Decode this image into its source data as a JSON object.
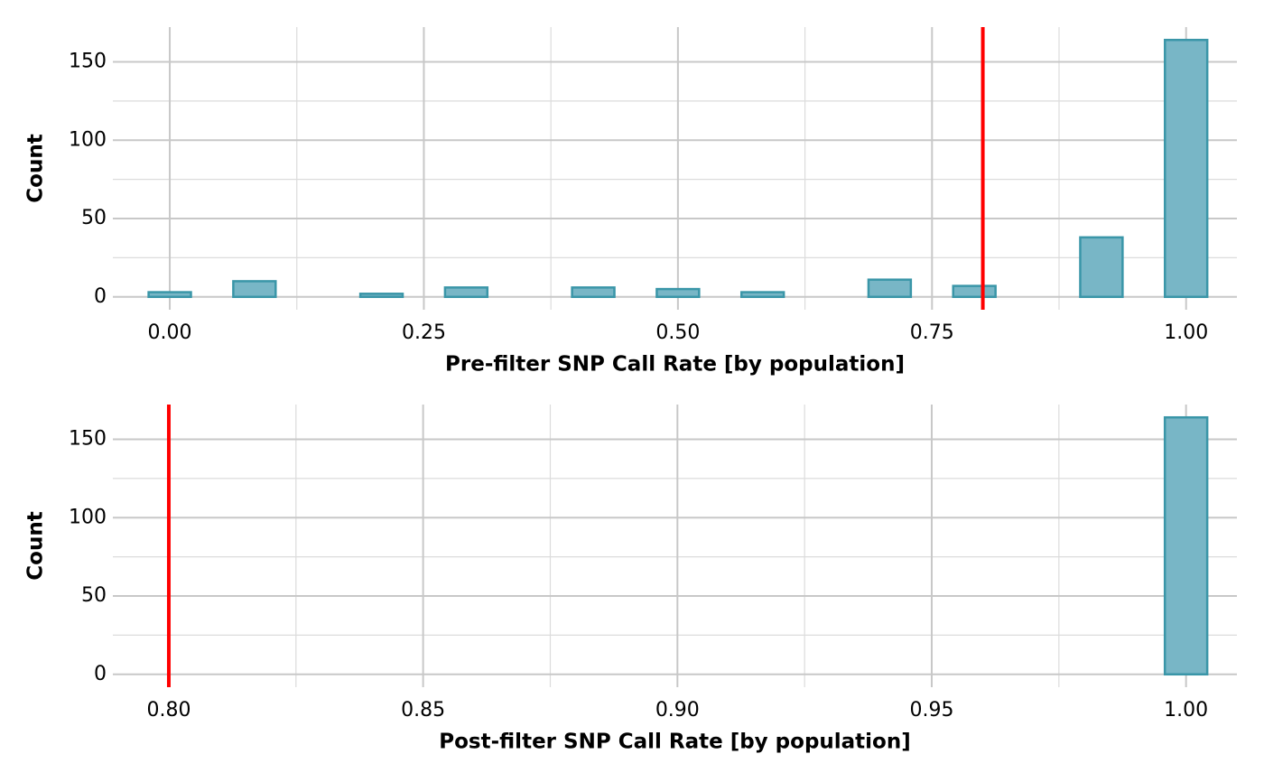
{
  "chart_data": [
    {
      "type": "histogram",
      "xlabel": "Pre-filter SNP Call Rate [by population]",
      "ylabel": "Count",
      "bins": [
        -0.020833,
        0.020833,
        0.0625,
        0.104167,
        0.145833,
        0.1875,
        0.229167,
        0.270833,
        0.3125,
        0.354167,
        0.395833,
        0.4375,
        0.479167,
        0.520833,
        0.5625,
        0.604167,
        0.645833,
        0.6875,
        0.729167,
        0.770833,
        0.8125,
        0.854167,
        0.895833,
        0.9375,
        0.979167,
        1.020833
      ],
      "values": [
        3,
        0,
        10,
        0,
        0,
        2,
        0,
        6,
        0,
        0,
        6,
        0,
        5,
        0,
        3,
        0,
        0,
        11,
        0,
        7,
        0,
        0,
        38,
        0,
        164
      ],
      "color": "#78b6c6",
      "edgecolor": "#3a96a8",
      "xlim": [
        -0.056,
        1.05
      ],
      "ylim": [
        -8.2,
        172.2
      ],
      "xticks": [
        {
          "value": 0,
          "label": "0.00"
        },
        {
          "value": 0.25,
          "label": "0.25"
        },
        {
          "value": 0.5,
          "label": "0.50"
        },
        {
          "value": 0.75,
          "label": "0.75"
        },
        {
          "value": 1,
          "label": "1.00"
        }
      ],
      "minor_xticks": [
        0.125,
        0.375,
        0.625,
        0.875
      ],
      "yticks": [
        0,
        50,
        100,
        150
      ],
      "minor_yticks": [
        25,
        75,
        125
      ],
      "vline": 0.8,
      "vline_color": "#ff0000",
      "grid": true
    },
    {
      "type": "histogram",
      "xlabel": "Post-filter SNP Call Rate [by population]",
      "ylabel": "Count",
      "bins": [
        0.795833,
        0.804167,
        0.8125,
        0.820833,
        0.829167,
        0.8375,
        0.845833,
        0.854167,
        0.8625,
        0.870833,
        0.879167,
        0.8875,
        0.895833,
        0.904167,
        0.9125,
        0.920833,
        0.929167,
        0.9375,
        0.945833,
        0.954167,
        0.9625,
        0.970833,
        0.979167,
        0.9875,
        0.995833,
        1.004167
      ],
      "values": [
        0,
        0,
        0,
        0,
        0,
        0,
        0,
        0,
        0,
        0,
        0,
        0,
        0,
        0,
        0,
        0,
        0,
        0,
        0,
        0,
        0,
        0,
        0,
        0,
        164
      ],
      "color": "#78b6c6",
      "edgecolor": "#3a96a8",
      "xlim": [
        0.789,
        1.01
      ],
      "ylim": [
        -8.2,
        172.2
      ],
      "xticks": [
        {
          "value": 0.8,
          "label": "0.80"
        },
        {
          "value": 0.85,
          "label": "0.85"
        },
        {
          "value": 0.9,
          "label": "0.90"
        },
        {
          "value": 0.95,
          "label": "0.95"
        },
        {
          "value": 1,
          "label": "1.00"
        }
      ],
      "minor_xticks": [
        0.825,
        0.875,
        0.925,
        0.975
      ],
      "yticks": [
        0,
        50,
        100,
        150
      ],
      "minor_yticks": [
        25,
        75,
        125
      ],
      "vline": 0.8,
      "vline_color": "#ff0000",
      "grid": true
    }
  ]
}
